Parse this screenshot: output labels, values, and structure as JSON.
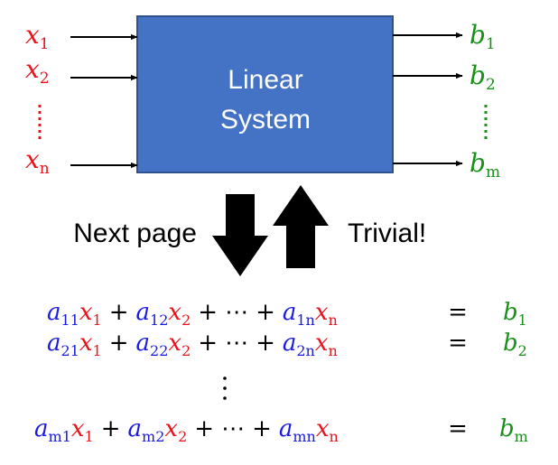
{
  "box": {
    "line1": "Linear",
    "line2": "System",
    "fill": "#4472c4",
    "stroke": "#2f528f"
  },
  "inputs": [
    {
      "base": "x",
      "sub": "1"
    },
    {
      "base": "x",
      "sub": "2"
    },
    {
      "base": "x",
      "sub": "n"
    }
  ],
  "outputs": [
    {
      "base": "b",
      "sub": "1"
    },
    {
      "base": "b",
      "sub": "2"
    },
    {
      "base": "b",
      "sub": "m"
    }
  ],
  "labels": {
    "down": "Next page",
    "up": "Trivial!"
  },
  "equations": {
    "row1": {
      "t1": {
        "c": "a",
        "cs": "11",
        "v": "x",
        "vs": "1"
      },
      "t2": {
        "c": "a",
        "cs": "12",
        "v": "x",
        "vs": "2"
      },
      "tn": {
        "c": "a",
        "cs": "1n",
        "v": "x",
        "vs": "n"
      },
      "rhs": {
        "b": "b",
        "bs": "1"
      }
    },
    "row2": {
      "t1": {
        "c": "a",
        "cs": "21",
        "v": "x",
        "vs": "1"
      },
      "t2": {
        "c": "a",
        "cs": "22",
        "v": "x",
        "vs": "2"
      },
      "tn": {
        "c": "a",
        "cs": "2n",
        "v": "x",
        "vs": "n"
      },
      "rhs": {
        "b": "b",
        "bs": "2"
      }
    },
    "row3": {
      "t1": {
        "c": "a",
        "cs": "m1",
        "v": "x",
        "vs": "1"
      },
      "t2": {
        "c": "a",
        "cs": "m2",
        "v": "x",
        "vs": "2"
      },
      "tn": {
        "c": "a",
        "cs": "mn",
        "v": "x",
        "vs": "n"
      },
      "rhs": {
        "b": "b",
        "bs": "m"
      }
    },
    "plus": "+",
    "cdots": "⋯",
    "eq": "="
  },
  "colors": {
    "variable": "#e8131b",
    "coefficient": "#1a1adf",
    "output": "#179117"
  }
}
